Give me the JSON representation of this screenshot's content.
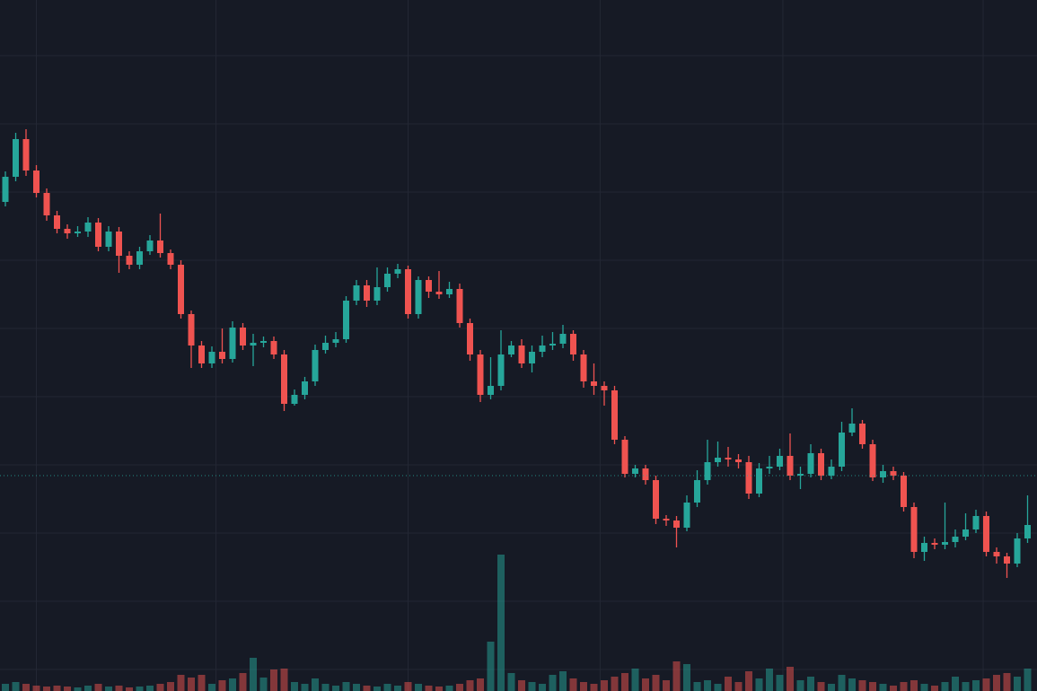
{
  "chart_data": {
    "type": "candlestick",
    "background": "#161a25",
    "grid_color": "#232734",
    "up_color": "#26a69a",
    "down_color": "#ef5350",
    "grid": true,
    "ylim": [
      0,
      770
    ],
    "yticks": [
      708,
      632,
      556,
      480,
      404,
      328,
      252,
      176,
      100,
      24
    ],
    "xticks": [
      3,
      20.4,
      39,
      57.6,
      75.3,
      94.7
    ],
    "price_line": 240,
    "volume_lim": [
      0,
      770
    ],
    "open": [
      545,
      573,
      615,
      580,
      555,
      530,
      515,
      510,
      512,
      522,
      495,
      512,
      485,
      475,
      490,
      502,
      488,
      475,
      420,
      385,
      365,
      378,
      370,
      405,
      385,
      388,
      390,
      375,
      320,
      330,
      345,
      380,
      388,
      392,
      435,
      452,
      435,
      450,
      465,
      470,
      420,
      458,
      445,
      442,
      448,
      410,
      375,
      330,
      340,
      375,
      385,
      365,
      378,
      385,
      387,
      398,
      375,
      345,
      340,
      335,
      280,
      242,
      248,
      235,
      192,
      190,
      182,
      210,
      235,
      255,
      260,
      258,
      255,
      220,
      248,
      250,
      262,
      240,
      242,
      265,
      240,
      250,
      288,
      298,
      275,
      238,
      245,
      240,
      205,
      155,
      165,
      163,
      166,
      172,
      180,
      195,
      155,
      150,
      142,
      170
    ],
    "high": [
      579,
      622,
      626,
      586,
      560,
      535,
      520,
      518,
      528,
      527,
      518,
      517,
      490,
      495,
      508,
      532,
      492,
      480,
      424,
      390,
      384,
      404,
      412,
      410,
      398,
      395,
      395,
      380,
      336,
      350,
      386,
      396,
      400,
      440,
      458,
      458,
      472,
      472,
      476,
      474,
      462,
      462,
      468,
      456,
      454,
      415,
      380,
      372,
      402,
      390,
      392,
      385,
      396,
      400,
      408,
      402,
      380,
      365,
      345,
      340,
      284,
      252,
      252,
      240,
      196,
      195,
      218,
      246,
      280,
      278,
      272,
      264,
      262,
      254,
      262,
      270,
      287,
      250,
      275,
      270,
      258,
      300,
      315,
      302,
      280,
      252,
      250,
      244,
      210,
      172,
      170,
      210,
      180,
      198,
      202,
      200,
      160,
      154,
      176,
      218
    ],
    "low": [
      540,
      568,
      574,
      550,
      524,
      510,
      504,
      506,
      506,
      490,
      490,
      466,
      470,
      470,
      486,
      483,
      470,
      415,
      360,
      360,
      360,
      365,
      366,
      380,
      362,
      383,
      370,
      312,
      318,
      325,
      340,
      376,
      383,
      388,
      430,
      428,
      430,
      445,
      460,
      415,
      415,
      438,
      437,
      438,
      405,
      368,
      322,
      325,
      335,
      372,
      360,
      355,
      372,
      380,
      382,
      368,
      338,
      330,
      318,
      275,
      238,
      238,
      230,
      186,
      184,
      160,
      178,
      205,
      230,
      250,
      250,
      248,
      214,
      216,
      242,
      246,
      235,
      225,
      238,
      235,
      236,
      245,
      284,
      270,
      234,
      232,
      235,
      200,
      148,
      145,
      158,
      158,
      160,
      168,
      176,
      150,
      142,
      126,
      138,
      165
    ],
    "close": [
      573,
      615,
      580,
      555,
      530,
      515,
      510,
      512,
      522,
      495,
      512,
      485,
      475,
      490,
      502,
      488,
      475,
      420,
      385,
      365,
      378,
      370,
      405,
      385,
      388,
      390,
      375,
      320,
      330,
      345,
      380,
      388,
      392,
      435,
      452,
      435,
      450,
      465,
      470,
      420,
      458,
      445,
      442,
      448,
      410,
      375,
      330,
      340,
      375,
      385,
      365,
      378,
      385,
      387,
      398,
      375,
      345,
      340,
      335,
      280,
      242,
      248,
      235,
      192,
      190,
      182,
      210,
      235,
      255,
      260,
      258,
      255,
      220,
      248,
      250,
      262,
      240,
      242,
      265,
      240,
      250,
      288,
      298,
      275,
      238,
      245,
      240,
      205,
      155,
      165,
      163,
      166,
      172,
      180,
      195,
      155,
      150,
      142,
      170,
      185
    ],
    "volume": [
      8,
      10,
      8,
      6,
      5,
      6,
      5,
      4,
      6,
      8,
      5,
      6,
      4,
      5,
      6,
      8,
      10,
      18,
      15,
      18,
      8,
      12,
      14,
      20,
      37,
      15,
      24,
      25,
      10,
      8,
      14,
      8,
      6,
      10,
      8,
      6,
      5,
      8,
      6,
      10,
      8,
      6,
      5,
      6,
      8,
      12,
      14,
      55,
      152,
      20,
      12,
      10,
      8,
      18,
      22,
      14,
      10,
      8,
      12,
      16,
      20,
      25,
      14,
      18,
      12,
      33,
      30,
      10,
      12,
      8,
      16,
      10,
      22,
      14,
      25,
      18,
      27,
      12,
      16,
      10,
      8,
      18,
      14,
      12,
      10,
      8,
      6,
      10,
      12,
      8,
      6,
      10,
      16,
      10,
      12,
      14,
      18,
      20,
      16,
      25
    ]
  }
}
